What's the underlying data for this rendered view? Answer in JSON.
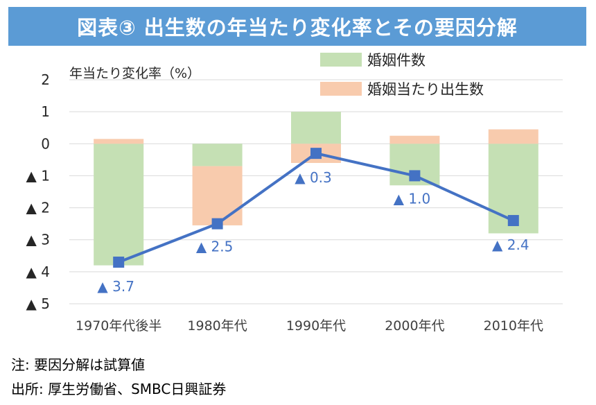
{
  "title": "図表③ 出生数の年当たり変化率とその要因分解",
  "notes": {
    "line1": "注: 要因分解は試算値",
    "line2": "出所: 厚生労働省、SMBC日興証券"
  },
  "colors": {
    "title_bg": "#5b9bd5",
    "marriages": "#c5e0b4",
    "per_marriage": "#f8cbad",
    "line": "#4472c4",
    "grid": "#d9d9d9",
    "axis_text": "#404040"
  },
  "chart_data": {
    "type": "bar+line",
    "title": "図表③ 出生数の年当たり変化率とその要因分解",
    "ylabel": "年当たり変化率（%）",
    "categories": [
      "1970年代後半",
      "1980年代",
      "1990年代",
      "2000年代",
      "2010年代"
    ],
    "ylim": [
      -5,
      2
    ],
    "yticks": [
      2,
      1,
      0,
      -1,
      -2,
      -3,
      -4,
      -5
    ],
    "ytick_labels": [
      "2",
      "1",
      "0",
      "▲ 1",
      "▲ 2",
      "▲ 3",
      "▲ 4",
      "▲ 5"
    ],
    "series": [
      {
        "name": "婚姻件数",
        "kind": "stacked-bar",
        "values": [
          -3.8,
          -0.7,
          1.0,
          -1.3,
          -2.8
        ]
      },
      {
        "name": "婚姻当たり出生数",
        "kind": "stacked-bar",
        "values": [
          0.15,
          -1.85,
          -0.6,
          0.25,
          0.45
        ]
      },
      {
        "name": "出生数",
        "kind": "line",
        "values": [
          -3.7,
          -2.5,
          -0.3,
          -1.0,
          -2.4
        ]
      }
    ],
    "data_labels": [
      "▲ 3.7",
      "▲ 2.5",
      "▲ 0.3",
      "▲ 1.0",
      "▲ 2.4"
    ],
    "legend_position": "top-right",
    "grid": true
  }
}
